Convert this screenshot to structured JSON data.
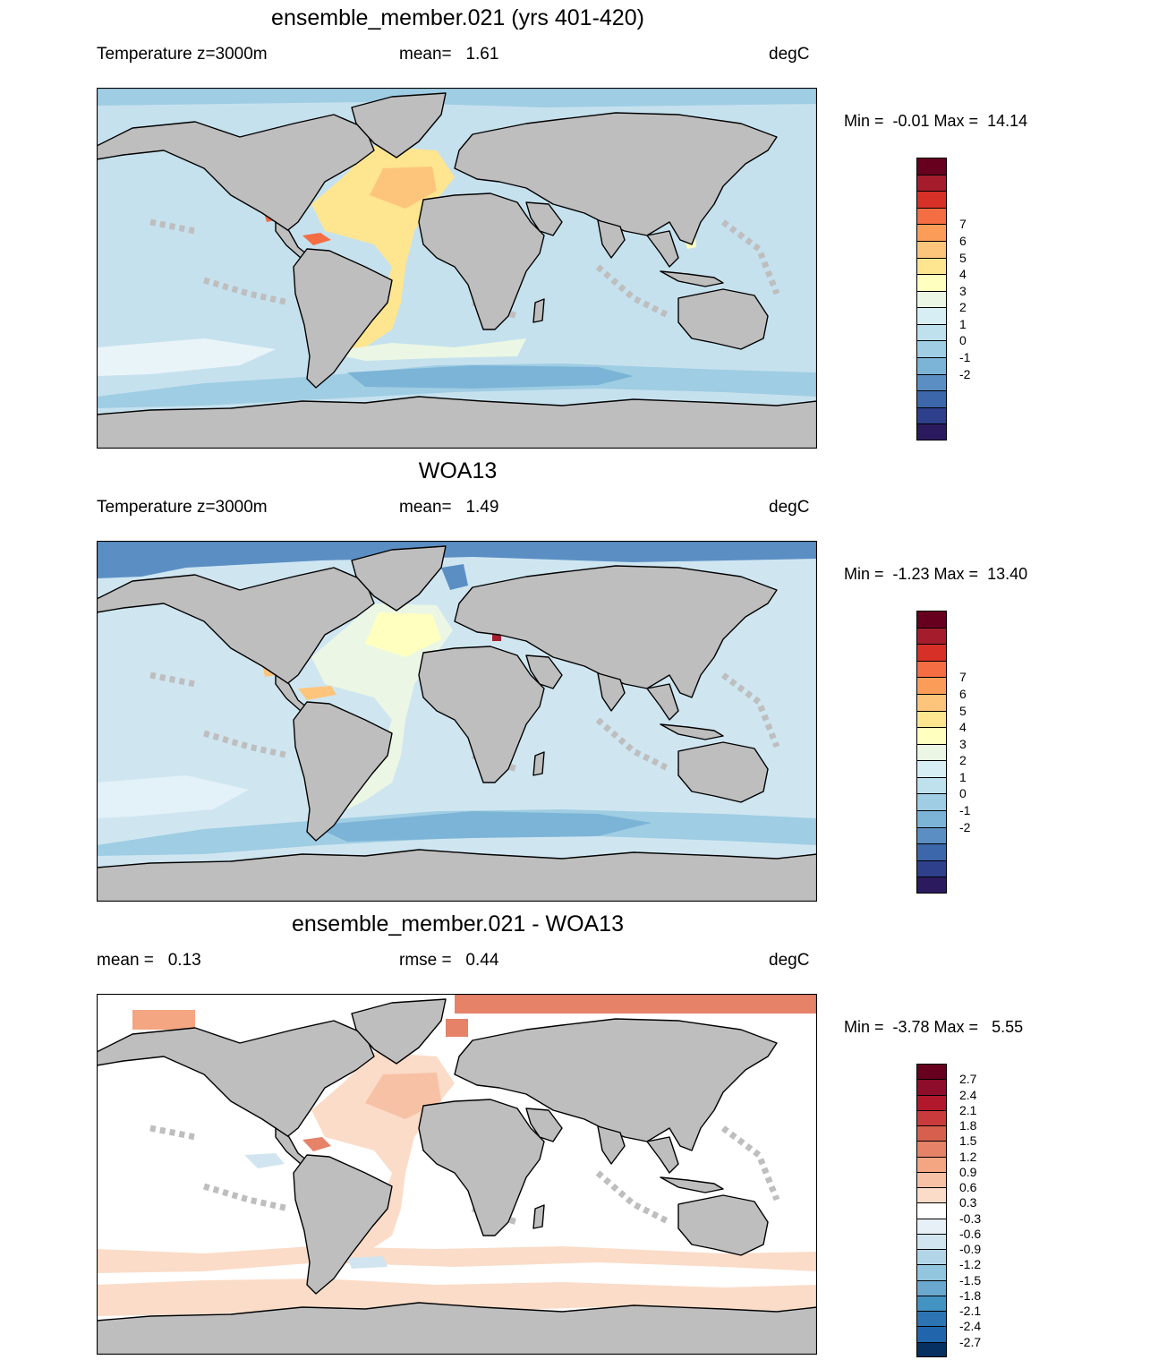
{
  "panels": [
    {
      "title": "ensemble_member.021 (yrs 401-420)",
      "left_label": "Temperature z=3000m",
      "center_label": "mean=   1.61",
      "units": "degC",
      "minmax": "Min =  -0.01 Max =  14.14",
      "map_fill": "#c6e1ee",
      "colorbar": {
        "labels": [
          "7",
          "6",
          "5",
          "4",
          "3",
          "2",
          "1",
          "0",
          "-1",
          "-2"
        ],
        "colors": [
          "#67001f",
          "#a51c2d",
          "#d73027",
          "#f46d43",
          "#fb9d59",
          "#fdc57c",
          "#fee590",
          "#ffffbf",
          "#ebf7e4",
          "#d8eef5",
          "#bfe0ed",
          "#9fcde3",
          "#7cb4d7",
          "#5b8fc4",
          "#3c67ab",
          "#2e3f8c",
          "#2b1b5e"
        ]
      }
    },
    {
      "title": "WOA13",
      "left_label": "Temperature z=3000m",
      "center_label": "mean=   1.49",
      "units": "degC",
      "minmax": "Min =  -1.23 Max =  13.40",
      "map_fill": "#cfe6f1",
      "colorbar": {
        "labels": [
          "7",
          "6",
          "5",
          "4",
          "3",
          "2",
          "1",
          "0",
          "-1",
          "-2"
        ],
        "colors": [
          "#67001f",
          "#a51c2d",
          "#d73027",
          "#f46d43",
          "#fb9d59",
          "#fdc57c",
          "#fee590",
          "#ffffbf",
          "#ebf7e4",
          "#d8eef5",
          "#bfe0ed",
          "#9fcde3",
          "#7cb4d7",
          "#5b8fc4",
          "#3c67ab",
          "#2e3f8c",
          "#2b1b5e"
        ]
      }
    },
    {
      "title": "ensemble_member.021 - WOA13",
      "left_label": "mean =   0.13",
      "center_label": "rmse =   0.44",
      "units": "degC",
      "minmax": "Min =  -3.78 Max =   5.55",
      "map_fill": "#ffffff",
      "colorbar": {
        "labels": [
          "2.7",
          "2.4",
          "2.1",
          "1.8",
          "1.5",
          "1.2",
          "0.9",
          "0.6",
          "0.3",
          "-0.3",
          "-0.6",
          "-0.9",
          "-1.2",
          "-1.5",
          "-1.8",
          "-2.1",
          "-2.4",
          "-2.7"
        ],
        "colors": [
          "#67001f",
          "#8e0d2a",
          "#b2182b",
          "#c93a3c",
          "#d6604d",
          "#e58268",
          "#f4a582",
          "#f7c1a5",
          "#fbdcc8",
          "#ffffff",
          "#e6f0f6",
          "#d1e5f0",
          "#b2d6e8",
          "#92c5de",
          "#6ba8cf",
          "#4393c3",
          "#2c74b3",
          "#2166ac",
          "#053061"
        ]
      }
    }
  ]
}
